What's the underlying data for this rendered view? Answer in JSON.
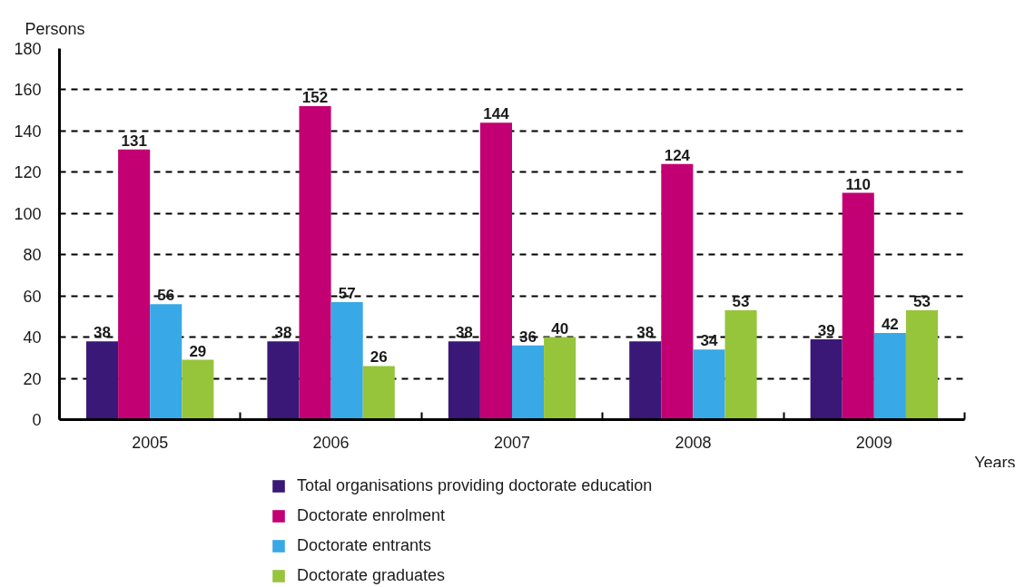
{
  "chart_data": {
    "type": "bar",
    "xlabel": "Years",
    "ylabel": "Persons",
    "categories": [
      "2005",
      "2006",
      "2007",
      "2008",
      "2009"
    ],
    "series": [
      {
        "name": "Total organisations providing doctorate education",
        "color": "#3a1877",
        "values": [
          38,
          38,
          38,
          38,
          39
        ]
      },
      {
        "name": "Doctorate enrolment",
        "color": "#c20073",
        "values": [
          131,
          152,
          144,
          124,
          110
        ]
      },
      {
        "name": "Doctorate entrants",
        "color": "#38a8e6",
        "values": [
          56,
          57,
          36,
          34,
          42
        ]
      },
      {
        "name": "Doctorate graduates",
        "color": "#96c43b",
        "values": [
          29,
          26,
          40,
          53,
          53
        ]
      }
    ],
    "ylim": [
      0,
      180
    ],
    "yticks": [
      0,
      20,
      40,
      60,
      80,
      100,
      120,
      140,
      160,
      180
    ],
    "grid": "y",
    "legend": "bottom",
    "data_labels": true
  }
}
